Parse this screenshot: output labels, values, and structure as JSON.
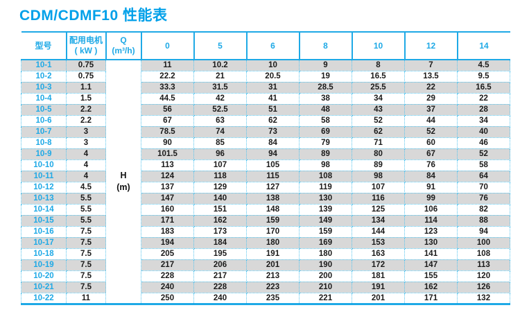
{
  "title": "CDM/CDMF10 性能表",
  "colors": {
    "accent": "#1ea9e6",
    "title": "#00a0e9",
    "dotted_border": "#56c4ee",
    "row_alt": "#d8d8d8",
    "text": "#1a1a1a"
  },
  "table": {
    "header": {
      "model": "型号",
      "motor_line1": "配用电机",
      "motor_line2": "( kW )",
      "q_line1": "Q",
      "q_line2": "(m³/h)"
    },
    "flow_headers": [
      "0",
      "5",
      "6",
      "8",
      "10",
      "12",
      "14"
    ],
    "h_label": "H",
    "h_unit": "(m)",
    "rows": [
      {
        "model": "10-1",
        "power": "0.75",
        "values": [
          "11",
          "10.2",
          "10",
          "9",
          "8",
          "7",
          "4.5"
        ]
      },
      {
        "model": "10-2",
        "power": "0.75",
        "values": [
          "22.2",
          "21",
          "20.5",
          "19",
          "16.5",
          "13.5",
          "9.5"
        ]
      },
      {
        "model": "10-3",
        "power": "1.1",
        "values": [
          "33.3",
          "31.5",
          "31",
          "28.5",
          "25.5",
          "22",
          "16.5"
        ]
      },
      {
        "model": "10-4",
        "power": "1.5",
        "values": [
          "44.5",
          "42",
          "41",
          "38",
          "34",
          "29",
          "22"
        ]
      },
      {
        "model": "10-5",
        "power": "2.2",
        "values": [
          "56",
          "52.5",
          "51",
          "48",
          "43",
          "37",
          "28"
        ]
      },
      {
        "model": "10-6",
        "power": "2.2",
        "values": [
          "67",
          "63",
          "62",
          "58",
          "52",
          "44",
          "34"
        ]
      },
      {
        "model": "10-7",
        "power": "3",
        "values": [
          "78.5",
          "74",
          "73",
          "69",
          "62",
          "52",
          "40"
        ]
      },
      {
        "model": "10-8",
        "power": "3",
        "values": [
          "90",
          "85",
          "84",
          "79",
          "71",
          "60",
          "46"
        ]
      },
      {
        "model": "10-9",
        "power": "4",
        "values": [
          "101.5",
          "96",
          "94",
          "89",
          "80",
          "67",
          "52"
        ]
      },
      {
        "model": "10-10",
        "power": "4",
        "values": [
          "113",
          "107",
          "105",
          "98",
          "89",
          "76",
          "58"
        ]
      },
      {
        "model": "10-11",
        "power": "4",
        "values": [
          "124",
          "118",
          "115",
          "108",
          "98",
          "84",
          "64"
        ]
      },
      {
        "model": "10-12",
        "power": "4.5",
        "values": [
          "137",
          "129",
          "127",
          "119",
          "107",
          "91",
          "70"
        ]
      },
      {
        "model": "10-13",
        "power": "5.5",
        "values": [
          "147",
          "140",
          "138",
          "130",
          "116",
          "99",
          "76"
        ]
      },
      {
        "model": "10-14",
        "power": "5.5",
        "values": [
          "160",
          "151",
          "148",
          "139",
          "125",
          "106",
          "82"
        ]
      },
      {
        "model": "10-15",
        "power": "5.5",
        "values": [
          "171",
          "162",
          "159",
          "149",
          "134",
          "114",
          "88"
        ]
      },
      {
        "model": "10-16",
        "power": "7.5",
        "values": [
          "183",
          "173",
          "170",
          "159",
          "144",
          "123",
          "94"
        ]
      },
      {
        "model": "10-17",
        "power": "7.5",
        "values": [
          "194",
          "184",
          "180",
          "169",
          "153",
          "130",
          "100"
        ]
      },
      {
        "model": "10-18",
        "power": "7.5",
        "values": [
          "205",
          "195",
          "191",
          "180",
          "163",
          "141",
          "108"
        ]
      },
      {
        "model": "10-19",
        "power": "7.5",
        "values": [
          "217",
          "206",
          "201",
          "190",
          "172",
          "147",
          "113"
        ]
      },
      {
        "model": "10-20",
        "power": "7.5",
        "values": [
          "228",
          "217",
          "213",
          "200",
          "181",
          "155",
          "120"
        ]
      },
      {
        "model": "10-21",
        "power": "7.5",
        "values": [
          "240",
          "228",
          "223",
          "210",
          "191",
          "162",
          "126"
        ]
      },
      {
        "model": "10-22",
        "power": "11",
        "values": [
          "250",
          "240",
          "235",
          "221",
          "201",
          "171",
          "132"
        ]
      }
    ]
  }
}
